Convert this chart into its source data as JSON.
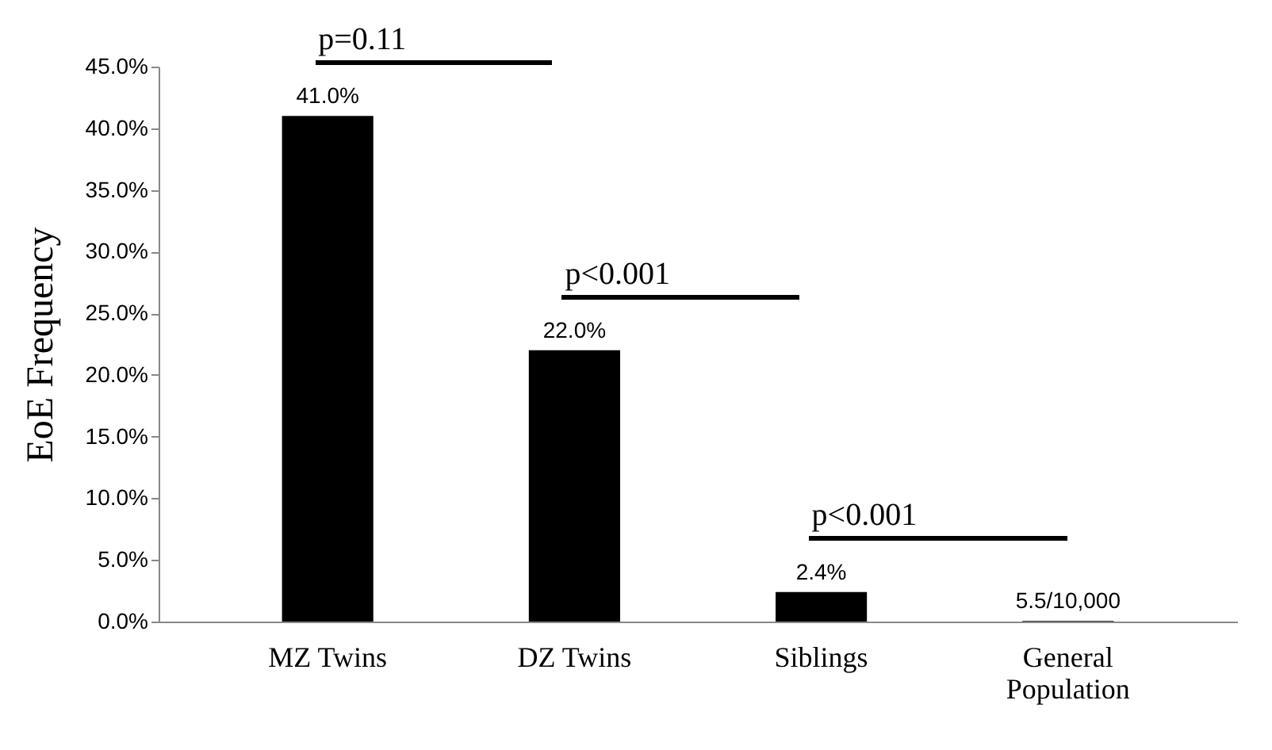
{
  "chart_data": {
    "type": "bar",
    "ylabel": "EoE Frequency",
    "categories": [
      "MZ Twins",
      "DZ Twins",
      "Siblings",
      "General Population"
    ],
    "values": [
      41.0,
      22.0,
      2.4,
      0.055
    ],
    "color": "#000000",
    "value_labels": [
      "41.0%",
      "22.0%",
      "2.4%",
      "5.5/10,000"
    ],
    "ylim": [
      0,
      45
    ],
    "yticks": [
      {
        "value": 0,
        "label": "0.0%"
      },
      {
        "value": 5,
        "label": "5.0%"
      },
      {
        "value": 10,
        "label": "10.0%"
      },
      {
        "value": 15,
        "label": "15.0%"
      },
      {
        "value": 20,
        "label": "20.0%"
      },
      {
        "value": 25,
        "label": "25.0%"
      },
      {
        "value": 30,
        "label": "30.0%"
      },
      {
        "value": 35,
        "label": "35.0%"
      },
      {
        "value": 40,
        "label": "40.0%"
      },
      {
        "value": 45,
        "label": "45.0%"
      }
    ],
    "annotations": [
      "p=0.11",
      "p<0.001",
      "p<0.001"
    ],
    "grid": false
  }
}
